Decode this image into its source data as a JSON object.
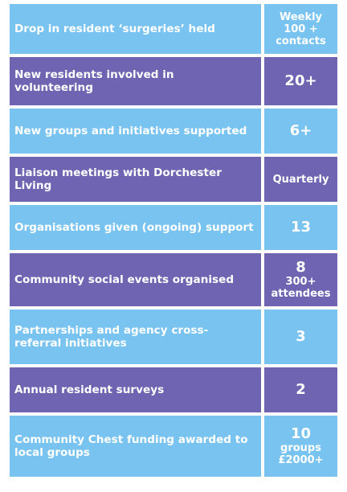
{
  "colors": {
    "light_blue": "#79c3f0",
    "purple": "#6e64b2",
    "text": "#ffffff"
  },
  "rows": [
    {
      "label": "Drop in resident ‘surgeries’ held",
      "value_main": "",
      "value_sub": "Weekly\n100 +\ncontacts"
    },
    {
      "label": "New residents involved in volunteering",
      "value_main": "20+",
      "value_sub": ""
    },
    {
      "label": "New groups and initiatives supported",
      "value_main": "6+",
      "value_sub": ""
    },
    {
      "label": "Liaison meetings with Dorchester Living",
      "value_main": "",
      "value_sub": "Quarterly"
    },
    {
      "label": "Organisations given (ongoing) support",
      "value_main": "13",
      "value_sub": ""
    },
    {
      "label": "Community social events organised",
      "value_main": "8",
      "value_sub": "300+\nattendees"
    },
    {
      "label": "Partnerships and agency cross-referral initiatives",
      "value_main": "3",
      "value_sub": ""
    },
    {
      "label": "Annual resident surveys",
      "value_main": "2",
      "value_sub": ""
    },
    {
      "label": "Community Chest funding awarded to local groups",
      "value_main": "10",
      "value_sub": "groups\n£2000+"
    }
  ]
}
